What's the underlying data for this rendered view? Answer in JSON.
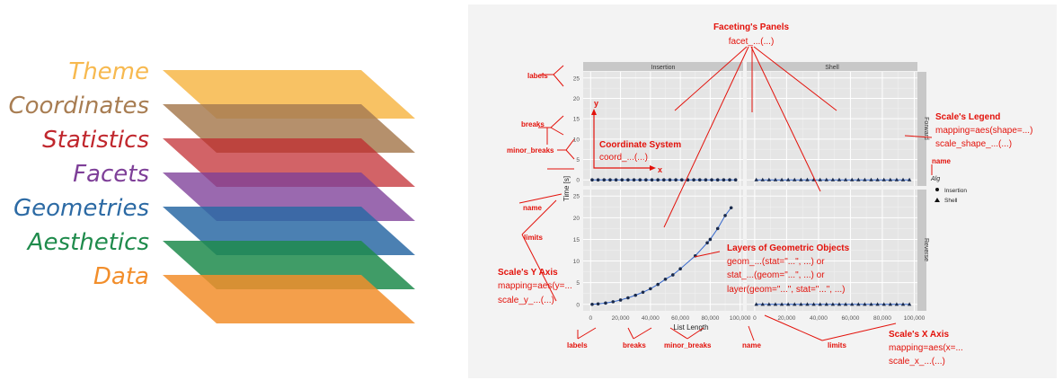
{
  "layers": [
    {
      "label": "Theme",
      "color": "#F7B94F"
    },
    {
      "label": "Coordinates",
      "color": "#A87D52"
    },
    {
      "label": "Statistics",
      "color": "#C0272D"
    },
    {
      "label": "Facets",
      "color": "#7E3F98"
    },
    {
      "label": "Geometries",
      "color": "#2C6AA4"
    },
    {
      "label": "Aesthetics",
      "color": "#1F8B4C"
    },
    {
      "label": "Data",
      "color": "#F28E2B"
    }
  ],
  "annotation_color": "#E3120B",
  "annotations": {
    "facet_title": "Faceting's Panels",
    "facet_code": "facet_...(...)",
    "labels_y": "labels",
    "breaks_y": "breaks",
    "minor_breaks_y": "minor_breaks",
    "coord_title": "Coordinate System",
    "coord_code": "coord_...(...)",
    "coord_axis_y": "y",
    "coord_axis_x": "x",
    "name_y": "name",
    "limits_y": "limits",
    "yaxis_title": "Scale's Y Axis",
    "yaxis_code1": "mapping=aes(y=...",
    "yaxis_code2": "scale_y_...(...)",
    "geom_title": "Layers of Geometric Objects",
    "geom_code1": "geom_...(stat=\"...\", ...) or",
    "geom_code2": "stat_...(geom=\"...\", ...) or",
    "geom_code3": "layer(geom=\"...\", stat=\"...\", ...)",
    "legend_title": "Scale's Legend",
    "legend_code1": "mapping=aes(shape=...)",
    "legend_code2": "scale_shape_...(...)",
    "legend_name": "name",
    "labels_x": "labels",
    "breaks_x": "breaks",
    "minor_breaks_x": "minor_breaks",
    "name_x": "name",
    "limits_x": "limits",
    "xaxis_title": "Scale's X Axis",
    "xaxis_code1": "mapping=aes(x=...",
    "xaxis_code2": "scale_x_...(...)"
  },
  "plot": {
    "strip_top": [
      "Insertion",
      "Shell"
    ],
    "strip_right": [
      "Forward",
      "Reverse"
    ],
    "y_title": "Time [s]",
    "x_title": "List Length",
    "y_ticks": [
      "0",
      "5",
      "10",
      "15",
      "20",
      "25"
    ],
    "x_ticks": [
      "0",
      "20,000",
      "40,000",
      "60,000",
      "80,000",
      "100,000"
    ],
    "legend_title": "Alg",
    "legend_items": [
      "Insertion",
      "Shell"
    ],
    "reverse_insertion_points": [
      [
        1000,
        0
      ],
      [
        5000,
        0.1
      ],
      [
        10000,
        0.3
      ],
      [
        15000,
        0.6
      ],
      [
        20000,
        1
      ],
      [
        25000,
        1.5
      ],
      [
        30000,
        2.1
      ],
      [
        35000,
        2.8
      ],
      [
        40000,
        3.6
      ],
      [
        45000,
        4.6
      ],
      [
        50000,
        5.8
      ],
      [
        55000,
        6.8
      ],
      [
        60000,
        8.2
      ],
      [
        70000,
        11.2
      ],
      [
        78000,
        14.2
      ],
      [
        80000,
        15
      ],
      [
        85000,
        17.5
      ],
      [
        90000,
        20.5
      ],
      [
        94000,
        22.3
      ]
    ]
  }
}
